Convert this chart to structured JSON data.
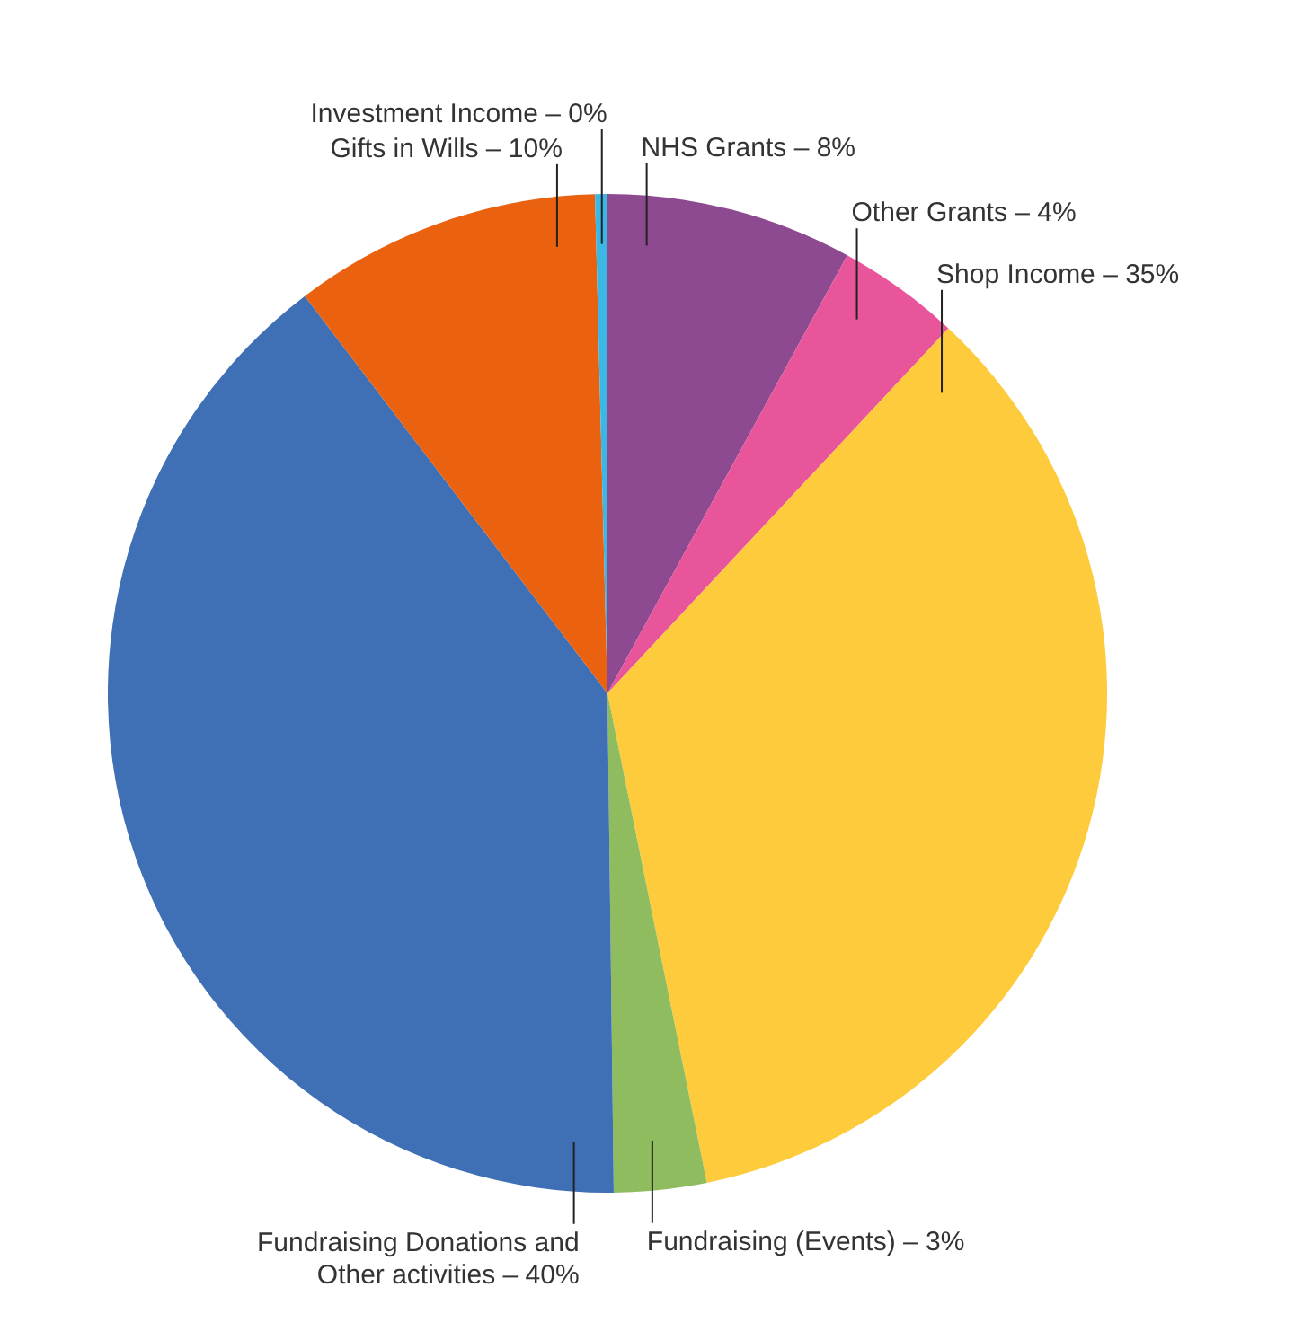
{
  "chart_data": {
    "type": "pie",
    "categories": [
      "NHS Grants – 8%",
      "Other Grants – 4%",
      "Shop Income – 35%",
      "Fundraising (Events) – 3%",
      "Fundraising Donations and Other activities – 40%",
      "Gifts in Wills – 10%",
      "Investment Income – 0%"
    ],
    "values": [
      8,
      4,
      35,
      3,
      40,
      10,
      0.4
    ],
    "colors": [
      "#8e4a91",
      "#e8559a",
      "#fdcb3b",
      "#8fbc5e",
      "#3f6fb5",
      "#ea6110",
      "#3bb7e5"
    ]
  }
}
